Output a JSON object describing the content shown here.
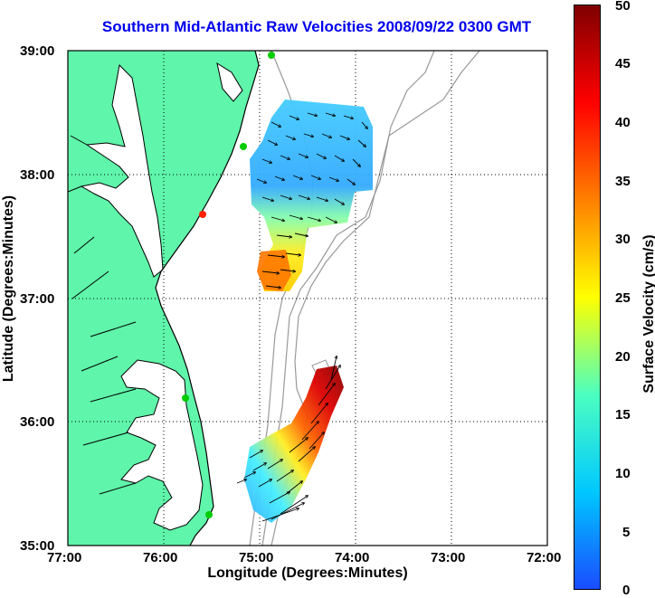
{
  "title": "Southern Mid-Atlantic Raw Velocities 2008/09/22 0300 GMT",
  "axes": {
    "xlabel": "Longitude (Degrees:Minutes)",
    "ylabel": "Latitude (Degrees:Minutes)",
    "x_ticks": [
      "77:00",
      "76:00",
      "75:00",
      "74:00",
      "73:00",
      "72:00"
    ],
    "y_ticks": [
      "39:00",
      "38:00",
      "37:00",
      "36:00",
      "35:00"
    ],
    "xlim": [
      -77,
      -72
    ],
    "ylim": [
      35,
      39
    ],
    "grid": "dotted"
  },
  "colorbar": {
    "label": "Surface Velocity (cm/s)",
    "ticks": [
      "50",
      "45",
      "40",
      "35",
      "30",
      "25",
      "20",
      "15",
      "10",
      "5",
      "0"
    ],
    "range": [
      0,
      50
    ],
    "colors": [
      "#1a4cff",
      "#00c8ff",
      "#4cffc0",
      "#ffff00",
      "#ff8000",
      "#ff0000",
      "#800000"
    ]
  },
  "colors": {
    "land": "#5ff5aa",
    "coastline": "#000000",
    "bathymetry": "#999999",
    "stations": "#00cc00",
    "station_highlight": "#ff2200"
  }
}
